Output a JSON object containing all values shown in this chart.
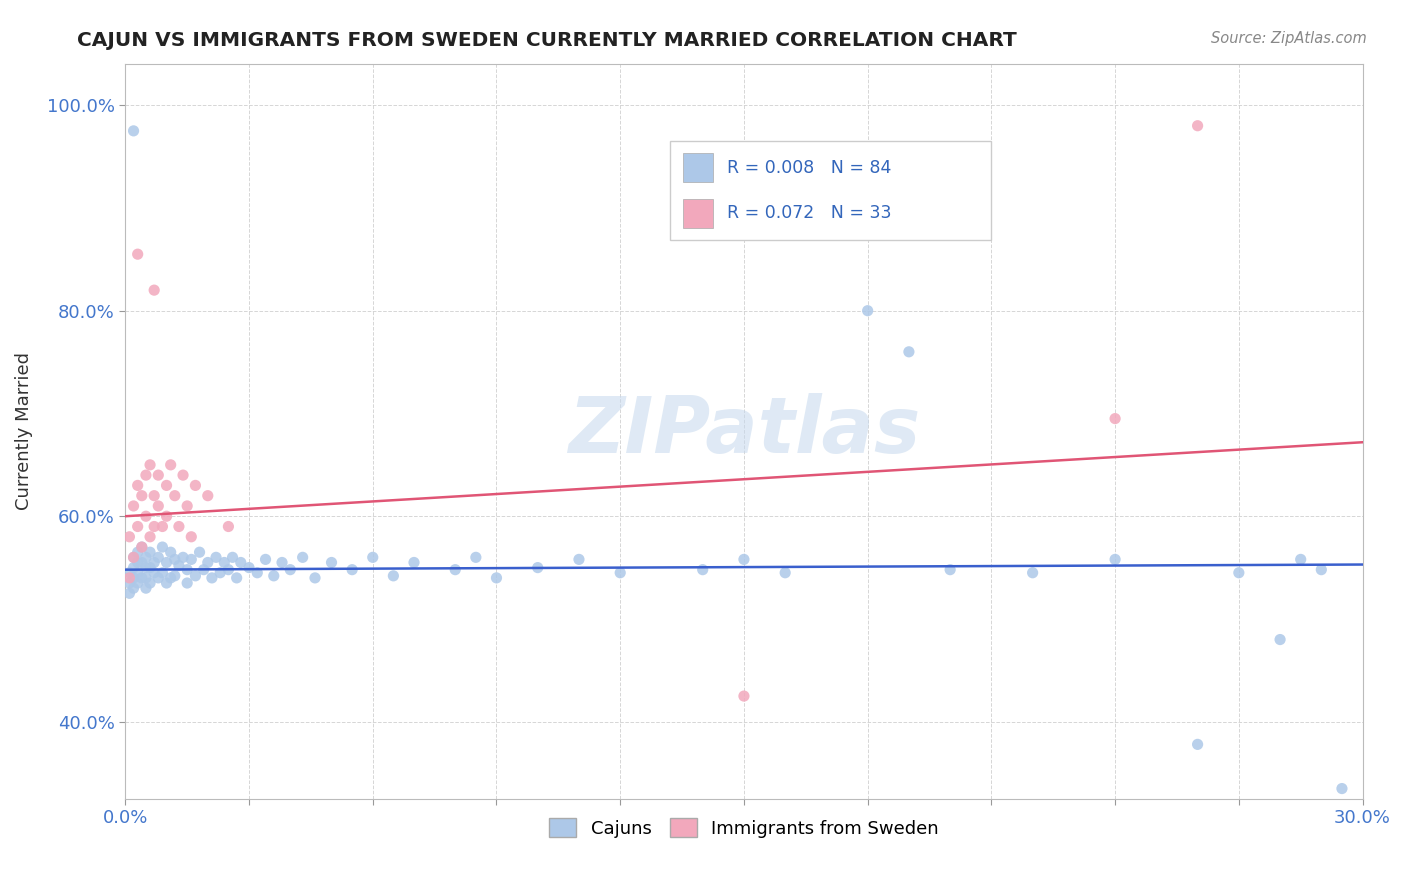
{
  "title": "CAJUN VS IMMIGRANTS FROM SWEDEN CURRENTLY MARRIED CORRELATION CHART",
  "source": "Source: ZipAtlas.com",
  "ylabel": "Currently Married",
  "legend_labels": [
    "Cajuns",
    "Immigrants from Sweden"
  ],
  "cajun_R": "0.008",
  "cajun_N": "84",
  "sweden_R": "0.072",
  "sweden_N": "33",
  "cajun_color": "#adc8e8",
  "sweden_color": "#f2a8bc",
  "cajun_line_color": "#3a5fcd",
  "sweden_line_color": "#e05575",
  "watermark_text": "ZIPatlas",
  "background_color": "#ffffff",
  "title_color": "#222222",
  "xmin": 0.0,
  "xmax": 0.3,
  "ymin": 0.325,
  "ymax": 1.04,
  "cajun_line_x0": 0.0,
  "cajun_line_y0": 0.548,
  "cajun_line_x1": 0.3,
  "cajun_line_y1": 0.553,
  "sweden_line_x0": 0.0,
  "sweden_line_y0": 0.6,
  "sweden_line_x1": 0.3,
  "sweden_line_y1": 0.672,
  "cajun_x": [
    0.001,
    0.001,
    0.001,
    0.002,
    0.002,
    0.002,
    0.002,
    0.003,
    0.003,
    0.003,
    0.003,
    0.004,
    0.004,
    0.004,
    0.005,
    0.005,
    0.005,
    0.005,
    0.006,
    0.006,
    0.006,
    0.007,
    0.007,
    0.008,
    0.008,
    0.009,
    0.009,
    0.01,
    0.01,
    0.011,
    0.011,
    0.012,
    0.012,
    0.013,
    0.014,
    0.015,
    0.015,
    0.016,
    0.017,
    0.018,
    0.019,
    0.02,
    0.021,
    0.022,
    0.023,
    0.024,
    0.025,
    0.026,
    0.027,
    0.028,
    0.03,
    0.032,
    0.034,
    0.036,
    0.038,
    0.04,
    0.043,
    0.046,
    0.05,
    0.055,
    0.06,
    0.065,
    0.07,
    0.08,
    0.085,
    0.09,
    0.1,
    0.11,
    0.12,
    0.14,
    0.15,
    0.16,
    0.18,
    0.19,
    0.2,
    0.22,
    0.24,
    0.26,
    0.27,
    0.28,
    0.285,
    0.29,
    0.295,
    0.002
  ],
  "cajun_y": [
    0.545,
    0.535,
    0.525,
    0.56,
    0.55,
    0.54,
    0.53,
    0.565,
    0.555,
    0.545,
    0.535,
    0.57,
    0.555,
    0.54,
    0.56,
    0.55,
    0.54,
    0.53,
    0.565,
    0.55,
    0.535,
    0.555,
    0.545,
    0.56,
    0.54,
    0.57,
    0.545,
    0.555,
    0.535,
    0.565,
    0.54,
    0.558,
    0.542,
    0.552,
    0.56,
    0.548,
    0.535,
    0.558,
    0.542,
    0.565,
    0.548,
    0.555,
    0.54,
    0.56,
    0.545,
    0.555,
    0.548,
    0.56,
    0.54,
    0.555,
    0.55,
    0.545,
    0.558,
    0.542,
    0.555,
    0.548,
    0.56,
    0.54,
    0.555,
    0.548,
    0.56,
    0.542,
    0.555,
    0.548,
    0.56,
    0.54,
    0.55,
    0.558,
    0.545,
    0.548,
    0.558,
    0.545,
    0.8,
    0.76,
    0.548,
    0.545,
    0.558,
    0.378,
    0.545,
    0.48,
    0.558,
    0.548,
    0.335,
    0.975
  ],
  "sweden_x": [
    0.001,
    0.001,
    0.002,
    0.002,
    0.003,
    0.003,
    0.004,
    0.004,
    0.005,
    0.005,
    0.006,
    0.006,
    0.007,
    0.007,
    0.008,
    0.008,
    0.009,
    0.01,
    0.01,
    0.011,
    0.012,
    0.013,
    0.014,
    0.015,
    0.016,
    0.017,
    0.02,
    0.025,
    0.15,
    0.24,
    0.26,
    0.007,
    0.003
  ],
  "sweden_y": [
    0.54,
    0.58,
    0.61,
    0.56,
    0.63,
    0.59,
    0.62,
    0.57,
    0.64,
    0.6,
    0.58,
    0.65,
    0.62,
    0.59,
    0.64,
    0.61,
    0.59,
    0.63,
    0.6,
    0.65,
    0.62,
    0.59,
    0.64,
    0.61,
    0.58,
    0.63,
    0.62,
    0.59,
    0.425,
    0.695,
    0.98,
    0.82,
    0.855
  ]
}
